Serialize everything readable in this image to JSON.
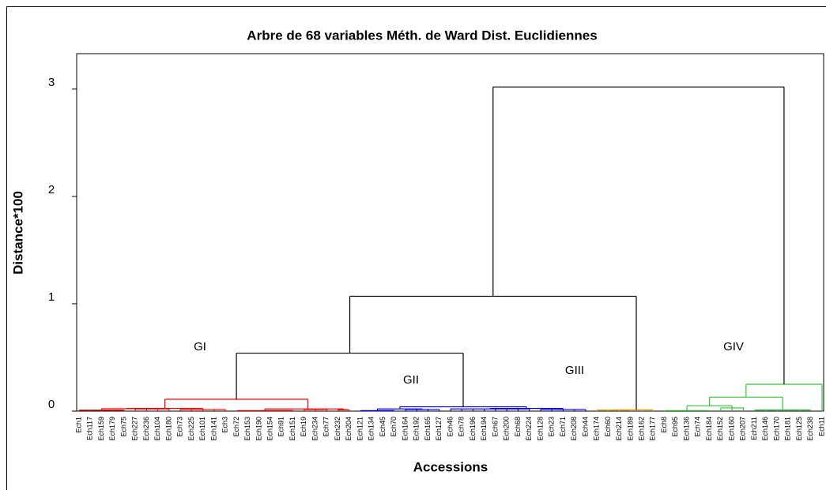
{
  "chart_data": {
    "type": "dendrogram",
    "title": "Arbre de 68 variables Méth. de Ward Dist. Euclidiennes",
    "y_label": "Distance*100",
    "x_label": "Accessions",
    "ylim": [
      0,
      3.33
    ],
    "yticks": [
      0,
      1,
      2,
      3
    ],
    "annotations": [
      "GI",
      "GII",
      "GIII",
      "GIV"
    ],
    "leaves": [
      "Ech1",
      "Ech117",
      "Ech159",
      "Ech179",
      "Ech75",
      "Ech227",
      "Ech236",
      "Ech104",
      "Ech180",
      "Ech73",
      "Ech225",
      "Ech101",
      "Ech141",
      "Ech3",
      "Ech72",
      "Ech153",
      "Ech190",
      "Ech154",
      "Ech91",
      "Ech151",
      "Ech19",
      "Ech234",
      "Ech77",
      "Ech232",
      "Ech204",
      "Ech121",
      "Ech134",
      "Ech45",
      "Ech70",
      "Ech164",
      "Ech192",
      "Ech165",
      "Ech127",
      "Ech46",
      "Ech78",
      "Ech196",
      "Ech194",
      "Ech67",
      "Ech200",
      "Ech68",
      "Ech224",
      "Ech128",
      "Ech23",
      "Ech71",
      "Ech208",
      "Ech44",
      "Ech174",
      "Ech60",
      "Ech214",
      "Ech189",
      "Ech162",
      "Ech177",
      "Ech8",
      "Ech95",
      "Ech136",
      "Ech74",
      "Ech184",
      "Ech152",
      "Ech160",
      "Ech207",
      "Ech211",
      "Ech146",
      "Ech170",
      "Ech181",
      "Ech125",
      "Ech238",
      "Ech11"
    ],
    "nodes": [
      {
        "children": [
          0,
          1,
          2,
          3,
          4
        ],
        "height": 0.008,
        "color": "#ff0000"
      },
      {
        "children": [
          5,
          6,
          7,
          8
        ],
        "height": 0.02,
        "color": "#ff0000"
      },
      {
        "children": [
          9,
          10,
          11,
          12,
          13
        ],
        "height": 0.015,
        "color": "#ff0000"
      },
      {
        "children": [
          67,
          68
        ],
        "height": 0.022,
        "color": "#ff0000"
      },
      {
        "children": [
          70,
          69
        ],
        "height": 0.025,
        "color": "#ff0000"
      },
      {
        "children": [
          14,
          15,
          16,
          17,
          18,
          19
        ],
        "height": 0.005,
        "color": "#ff0000"
      },
      {
        "children": [
          20,
          21,
          22
        ],
        "height": 0.015,
        "color": "#ff0000"
      },
      {
        "children": [
          23,
          24
        ],
        "height": 0.012,
        "color": "#ff0000"
      },
      {
        "children": [
          72,
          73,
          74
        ],
        "height": 0.02,
        "color": "#ff0000"
      },
      {
        "children": [
          71,
          75
        ],
        "height": 0.11,
        "color": "#ff0000"
      },
      {
        "children": [
          25,
          26,
          27,
          28
        ],
        "height": 0.005,
        "color": "#0000ff"
      },
      {
        "children": [
          29,
          30,
          31,
          32
        ],
        "height": 0.015,
        "color": "#0000ff"
      },
      {
        "children": [
          77,
          78
        ],
        "height": 0.02,
        "color": "#0000ff"
      },
      {
        "children": [
          33,
          34,
          35,
          36,
          37,
          38,
          39,
          40
        ],
        "height": 0.02,
        "color": "#0000ff"
      },
      {
        "children": [
          41,
          42,
          43,
          44,
          45
        ],
        "height": 0.015,
        "color": "#0000ff"
      },
      {
        "children": [
          80,
          81
        ],
        "height": 0.025,
        "color": "#0000ff"
      },
      {
        "children": [
          79,
          82
        ],
        "height": 0.04,
        "color": "#0000ff"
      },
      {
        "children": [
          76,
          83
        ],
        "height": 0.54,
        "color": "#000000"
      },
      {
        "children": [
          46,
          47,
          48,
          49
        ],
        "height": 0.01,
        "color": "#ffa500"
      },
      {
        "children": [
          85,
          50,
          51
        ],
        "height": 0.012,
        "color": "#ffa500"
      },
      {
        "children": [
          84,
          86
        ],
        "height": 1.07,
        "color": "#000000"
      },
      {
        "children": [
          52,
          53,
          54,
          55,
          56
        ],
        "height": 0.005,
        "color": "#32c832"
      },
      {
        "children": [
          57,
          58,
          59
        ],
        "height": 0.03,
        "color": "#32c832"
      },
      {
        "children": [
          88,
          89
        ],
        "height": 0.05,
        "color": "#32c832"
      },
      {
        "children": [
          60,
          61,
          62,
          63,
          64,
          65
        ],
        "height": 0.01,
        "color": "#32c832"
      },
      {
        "children": [
          90,
          91
        ],
        "height": 0.13,
        "color": "#32c832"
      },
      {
        "children": [
          92,
          66
        ],
        "height": 0.25,
        "color": "#32c832"
      },
      {
        "children": [
          87,
          93
        ],
        "height": 3.02,
        "color": "#000000"
      }
    ]
  }
}
